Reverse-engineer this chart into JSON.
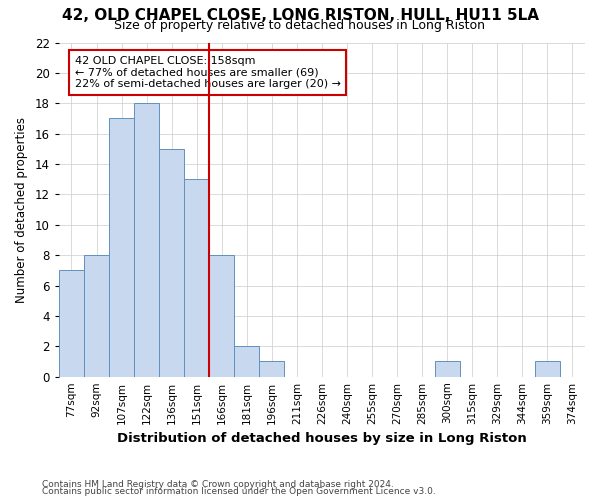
{
  "title": "42, OLD CHAPEL CLOSE, LONG RISTON, HULL, HU11 5LA",
  "subtitle": "Size of property relative to detached houses in Long Riston",
  "xlabel": "Distribution of detached houses by size in Long Riston",
  "ylabel": "Number of detached properties",
  "footnote1": "Contains HM Land Registry data © Crown copyright and database right 2024.",
  "footnote2": "Contains public sector information licensed under the Open Government Licence v3.0.",
  "categories": [
    "77sqm",
    "92sqm",
    "107sqm",
    "122sqm",
    "136sqm",
    "151sqm",
    "166sqm",
    "181sqm",
    "196sqm",
    "211sqm",
    "226sqm",
    "240sqm",
    "255sqm",
    "270sqm",
    "285sqm",
    "300sqm",
    "315sqm",
    "329sqm",
    "344sqm",
    "359sqm",
    "374sqm"
  ],
  "values": [
    7,
    8,
    17,
    18,
    15,
    13,
    8,
    2,
    1,
    0,
    0,
    0,
    0,
    0,
    0,
    1,
    0,
    0,
    0,
    1,
    0
  ],
  "property_line_x": 5.5,
  "bar_face_color": "#c8d8ee",
  "bar_edge_color": "#6090c0",
  "line_color": "#cc0000",
  "annotation_line1": "42 OLD CHAPEL CLOSE: 158sqm",
  "annotation_line2": "← 77% of detached houses are smaller (69)",
  "annotation_line3": "22% of semi-detached houses are larger (20) →",
  "annotation_box_edge_color": "#cc0000",
  "ylim": [
    0,
    22
  ],
  "yticks": [
    0,
    2,
    4,
    6,
    8,
    10,
    12,
    14,
    16,
    18,
    20,
    22
  ],
  "grid_color": "#cccccc",
  "bg_color": "#ffffff",
  "plot_bg_color": "#ffffff",
  "title_fontsize": 11,
  "subtitle_fontsize": 9
}
